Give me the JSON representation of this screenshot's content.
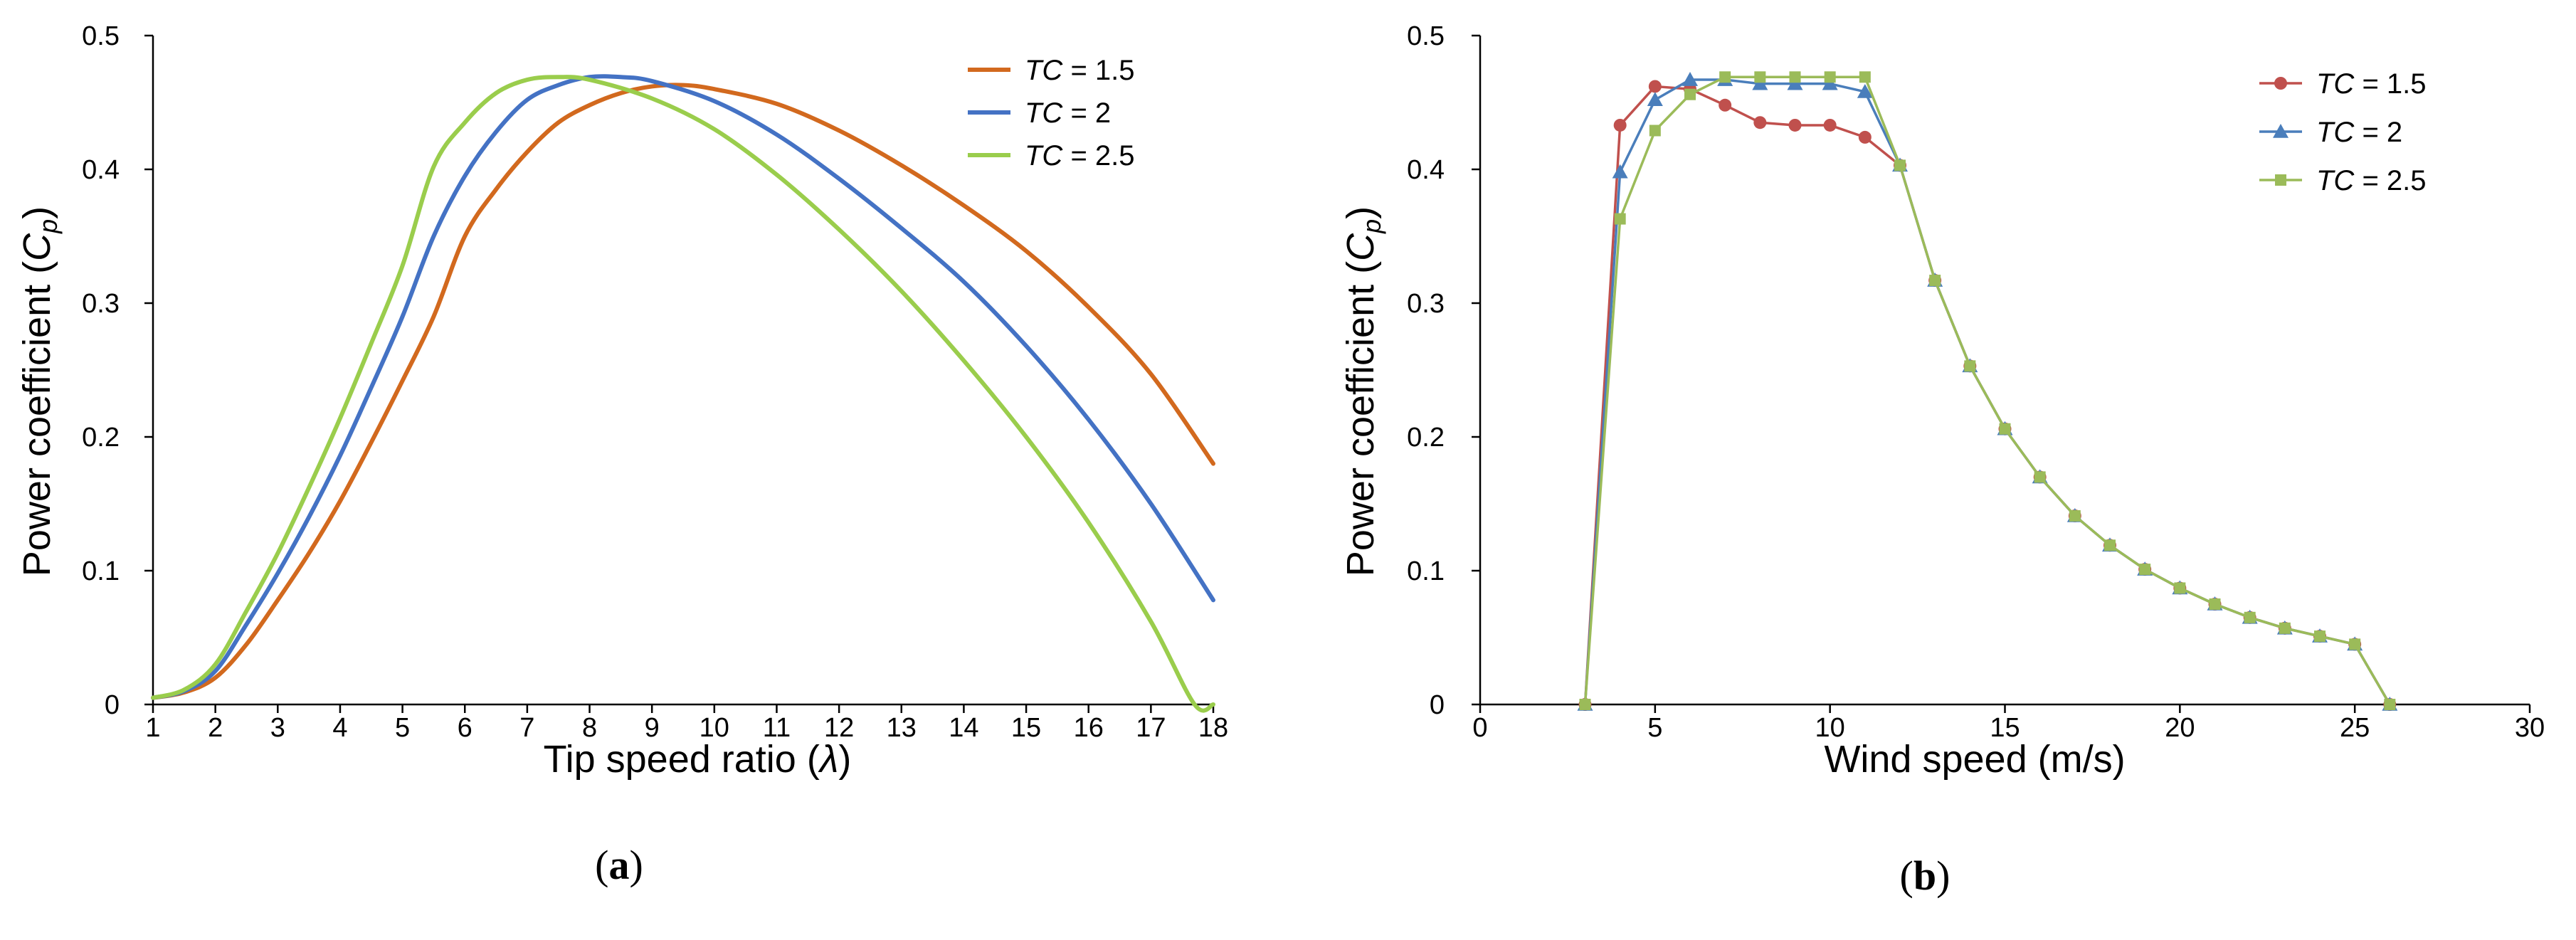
{
  "chart_data": [
    {
      "type": "line",
      "panel_label": "a",
      "xlabel": "Tip speed ratio (",
      "xlabel_symbol": "λ",
      "xlabel_suffix": ")",
      "ylabel": "Power coefficient (",
      "ylabel_symbol": "C",
      "ylabel_subscript": "p",
      "ylabel_suffix": ")",
      "xlim": [
        1,
        18
      ],
      "ylim": [
        0,
        0.5
      ],
      "xticks": [
        "1",
        "2",
        "3",
        "4",
        "5",
        "6",
        "7",
        "8",
        "9",
        "10",
        "11",
        "12",
        "13",
        "14",
        "15",
        "16",
        "17",
        "18"
      ],
      "yticks": [
        "0",
        "0.1",
        "0.2",
        "0.3",
        "0.4",
        "0.5"
      ],
      "grid": false,
      "legend_position": "top-right",
      "series": [
        {
          "name_prefix": "TC",
          "name_suffix": " = 1.5",
          "color": "#d2691e",
          "x": [
            1,
            1.5,
            2,
            2.5,
            3,
            3.5,
            4,
            4.5,
            5,
            5.5,
            6,
            6.5,
            7,
            7.5,
            8,
            8.5,
            9,
            9.5,
            10,
            11,
            12,
            13,
            14,
            15,
            16,
            17,
            18
          ],
          "values": [
            0.005,
            0.009,
            0.02,
            0.045,
            0.078,
            0.113,
            0.152,
            0.196,
            0.242,
            0.29,
            0.35,
            0.385,
            0.413,
            0.435,
            0.448,
            0.457,
            0.462,
            0.463,
            0.46,
            0.449,
            0.429,
            0.403,
            0.373,
            0.339,
            0.297,
            0.247,
            0.18
          ]
        },
        {
          "name_prefix": "TC",
          "name_suffix": " = 2",
          "color": "#4472c4",
          "x": [
            1,
            1.5,
            2,
            2.5,
            3,
            3.5,
            4,
            4.5,
            5,
            5.5,
            6,
            6.5,
            7,
            7.5,
            8,
            8.5,
            9,
            10,
            11,
            12,
            13,
            14,
            15,
            16,
            17,
            18
          ],
          "values": [
            0.005,
            0.01,
            0.025,
            0.06,
            0.098,
            0.14,
            0.186,
            0.237,
            0.29,
            0.35,
            0.395,
            0.428,
            0.452,
            0.463,
            0.469,
            0.469,
            0.466,
            0.451,
            0.426,
            0.393,
            0.356,
            0.316,
            0.268,
            0.213,
            0.15,
            0.078
          ]
        },
        {
          "name_prefix": "TC",
          "name_suffix": " = 2.5",
          "color": "#9acd4c",
          "x": [
            1,
            1.5,
            2,
            2.5,
            3,
            3.5,
            4,
            4.5,
            5,
            5.5,
            6,
            6.5,
            7,
            7.5,
            8,
            9,
            10,
            11,
            12,
            13,
            14,
            15,
            16,
            17,
            17.7,
            18
          ],
          "values": [
            0.005,
            0.011,
            0.03,
            0.07,
            0.113,
            0.162,
            0.214,
            0.27,
            0.328,
            0.402,
            0.435,
            0.457,
            0.467,
            0.469,
            0.467,
            0.453,
            0.43,
            0.396,
            0.355,
            0.309,
            0.257,
            0.2,
            0.136,
            0.062,
            0.0,
            0.0
          ]
        }
      ]
    },
    {
      "type": "line",
      "panel_label": "b",
      "xlabel": "Wind speed (m/s)",
      "ylabel": "Power coefficient (",
      "ylabel_symbol": "C",
      "ylabel_subscript": "p",
      "ylabel_suffix": ")",
      "xlim": [
        0,
        30
      ],
      "ylim": [
        0,
        0.5
      ],
      "xticks": [
        "0",
        "5",
        "10",
        "15",
        "20",
        "25",
        "30"
      ],
      "yticks": [
        "0",
        "0.1",
        "0.2",
        "0.3",
        "0.4",
        "0.5"
      ],
      "grid": false,
      "legend_position": "top-right",
      "series": [
        {
          "name_prefix": "TC",
          "name_suffix": " = 1.5",
          "color": "#c0504d",
          "marker": "circle",
          "x": [
            3,
            4,
            5,
            6,
            7,
            8,
            9,
            10,
            11,
            12,
            13,
            14,
            15,
            16,
            17,
            18,
            19,
            20,
            21,
            22,
            23,
            24,
            25,
            26
          ],
          "values": [
            0.0,
            0.433,
            0.462,
            0.46,
            0.448,
            0.435,
            0.433,
            0.433,
            0.424,
            0.403,
            0.317,
            0.253,
            0.206,
            0.17,
            0.141,
            0.119,
            0.101,
            0.087,
            0.075,
            0.065,
            0.057,
            0.051,
            0.045,
            0.0
          ]
        },
        {
          "name_prefix": "TC",
          "name_suffix": " = 2",
          "color": "#4a7ebb",
          "marker": "triangle",
          "x": [
            3,
            4,
            5,
            6,
            7,
            8,
            9,
            10,
            11,
            12,
            13,
            14,
            15,
            16,
            17,
            18,
            19,
            20,
            21,
            22,
            23,
            24,
            25,
            26
          ],
          "values": [
            0.0,
            0.398,
            0.452,
            0.467,
            0.467,
            0.464,
            0.464,
            0.464,
            0.458,
            0.403,
            0.317,
            0.253,
            0.206,
            0.17,
            0.141,
            0.119,
            0.101,
            0.087,
            0.075,
            0.065,
            0.057,
            0.051,
            0.045,
            0.0
          ]
        },
        {
          "name_prefix": "TC",
          "name_suffix": " = 2.5",
          "color": "#9bbb59",
          "marker": "square",
          "x": [
            3,
            4,
            5,
            6,
            7,
            8,
            9,
            10,
            11,
            12,
            13,
            14,
            15,
            16,
            17,
            18,
            19,
            20,
            21,
            22,
            23,
            24,
            25,
            26
          ],
          "values": [
            0.0,
            0.363,
            0.429,
            0.456,
            0.469,
            0.469,
            0.469,
            0.469,
            0.469,
            0.403,
            0.317,
            0.253,
            0.206,
            0.17,
            0.141,
            0.119,
            0.101,
            0.087,
            0.075,
            0.065,
            0.057,
            0.051,
            0.045,
            0.0
          ]
        }
      ]
    }
  ]
}
